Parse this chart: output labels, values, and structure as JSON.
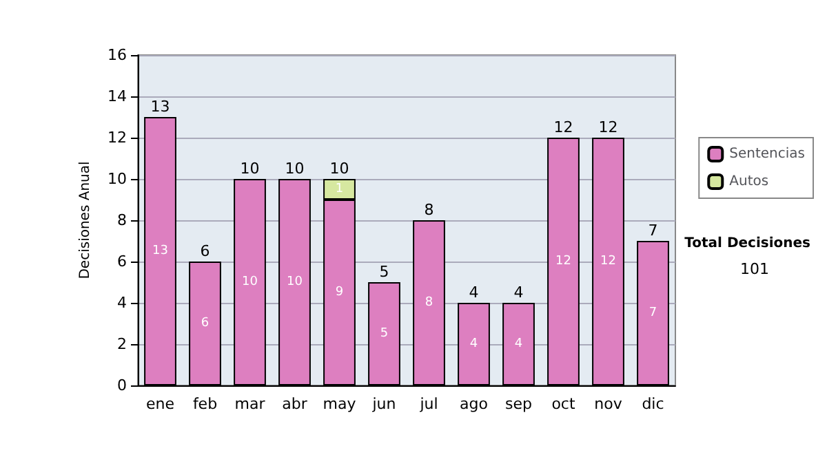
{
  "chart_data": {
    "type": "bar",
    "stacked": true,
    "ylabel": "Decisiones Anual",
    "categories": [
      "ene",
      "feb",
      "mar",
      "abr",
      "may",
      "jun",
      "jul",
      "ago",
      "sep",
      "oct",
      "nov",
      "dic"
    ],
    "series": [
      {
        "name": "Sentencias",
        "color": "#dd7fc0",
        "values": [
          13,
          6,
          10,
          10,
          9,
          5,
          8,
          4,
          4,
          12,
          12,
          7
        ],
        "value_labels": [
          "13",
          "6",
          "10",
          "10",
          "9",
          "5",
          "8",
          "4",
          "4",
          "12",
          "12",
          "7"
        ]
      },
      {
        "name": "Autos",
        "color": "#d6e8a0",
        "values": [
          0,
          0,
          0,
          0,
          1,
          0,
          0,
          0,
          0,
          0,
          0,
          0
        ],
        "value_labels": [
          null,
          null,
          null,
          null,
          "1",
          null,
          null,
          null,
          null,
          null,
          null,
          null
        ]
      }
    ],
    "totals": [
      "13",
      "6",
      "10",
      "10",
      "10",
      "5",
      "8",
      "4",
      "4",
      "12",
      "12",
      "7"
    ],
    "ylim": [
      0,
      16
    ],
    "yticks": [
      0,
      2,
      4,
      6,
      8,
      10,
      12,
      14,
      16
    ],
    "grid": "y",
    "legend": "right",
    "annotations": [
      "Total Decisiones",
      "101"
    ]
  }
}
